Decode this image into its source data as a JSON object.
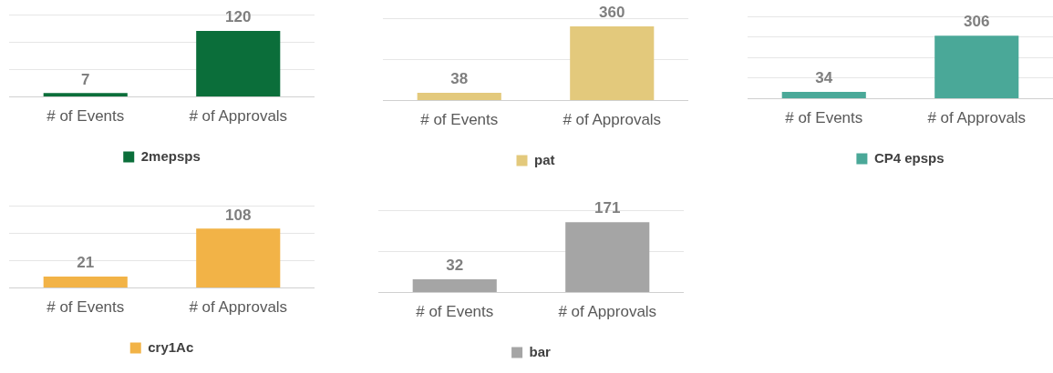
{
  "chart_data": [
    {
      "type": "bar",
      "categories": [
        "# of Events",
        "# of Approvals"
      ],
      "series": [
        {
          "name": "2mepsps",
          "color": "#0b6e3a",
          "values": [
            7,
            120
          ]
        }
      ],
      "ylim": [
        0,
        150
      ],
      "yticks": [
        {
          "value": 0,
          "label": null
        },
        {
          "value": 50,
          "label": null
        },
        {
          "value": 100,
          "label": null
        },
        {
          "value": 150,
          "label": null
        }
      ],
      "grid": "y",
      "tick_labels": "x",
      "legend": "bottom",
      "data_labels": true
    },
    {
      "type": "bar",
      "categories": [
        "# of Events",
        "# of Approvals"
      ],
      "series": [
        {
          "name": "pat",
          "color": "#e3c97c",
          "values": [
            38,
            360
          ]
        }
      ],
      "ylim": [
        0,
        400
      ],
      "yticks": [
        {
          "value": 0,
          "label": null
        },
        {
          "value": 200,
          "label": null
        },
        {
          "value": 400,
          "label": null
        }
      ],
      "grid": "y",
      "tick_labels": "x",
      "legend": "bottom",
      "data_labels": true
    },
    {
      "type": "bar",
      "categories": [
        "# of Events",
        "# of Approvals"
      ],
      "series": [
        {
          "name": "CP4 epsps",
          "color": "#4aa898",
          "values": [
            34,
            306
          ]
        }
      ],
      "ylim": [
        0,
        400
      ],
      "yticks": [
        {
          "value": 0,
          "label": null
        },
        {
          "value": 100,
          "label": null
        },
        {
          "value": 200,
          "label": null
        },
        {
          "value": 300,
          "label": null
        },
        {
          "value": 400,
          "label": null
        }
      ],
      "grid": "y",
      "tick_labels": "x",
      "legend": "bottom",
      "data_labels": true
    },
    {
      "type": "bar",
      "categories": [
        "# of Events",
        "# of Approvals"
      ],
      "series": [
        {
          "name": "cry1Ac",
          "color": "#f2b347",
          "values": [
            21,
            108
          ]
        }
      ],
      "ylim": [
        0,
        150
      ],
      "yticks": [
        {
          "value": 0,
          "label": null
        },
        {
          "value": 50,
          "label": null
        },
        {
          "value": 100,
          "label": null
        },
        {
          "value": 150,
          "label": null
        }
      ],
      "grid": "y",
      "tick_labels": "x",
      "legend": "bottom",
      "data_labels": true
    },
    {
      "type": "bar",
      "categories": [
        "# of Events",
        "# of Approvals"
      ],
      "series": [
        {
          "name": "bar",
          "color": "#a5a5a5",
          "values": [
            32,
            171
          ]
        }
      ],
      "ylim": [
        0,
        200
      ],
      "yticks": [
        {
          "value": 0,
          "label": null
        },
        {
          "value": 100,
          "label": null
        },
        {
          "value": 200,
          "label": null
        }
      ],
      "grid": "y",
      "tick_labels": "x",
      "legend": "bottom",
      "data_labels": true
    }
  ]
}
